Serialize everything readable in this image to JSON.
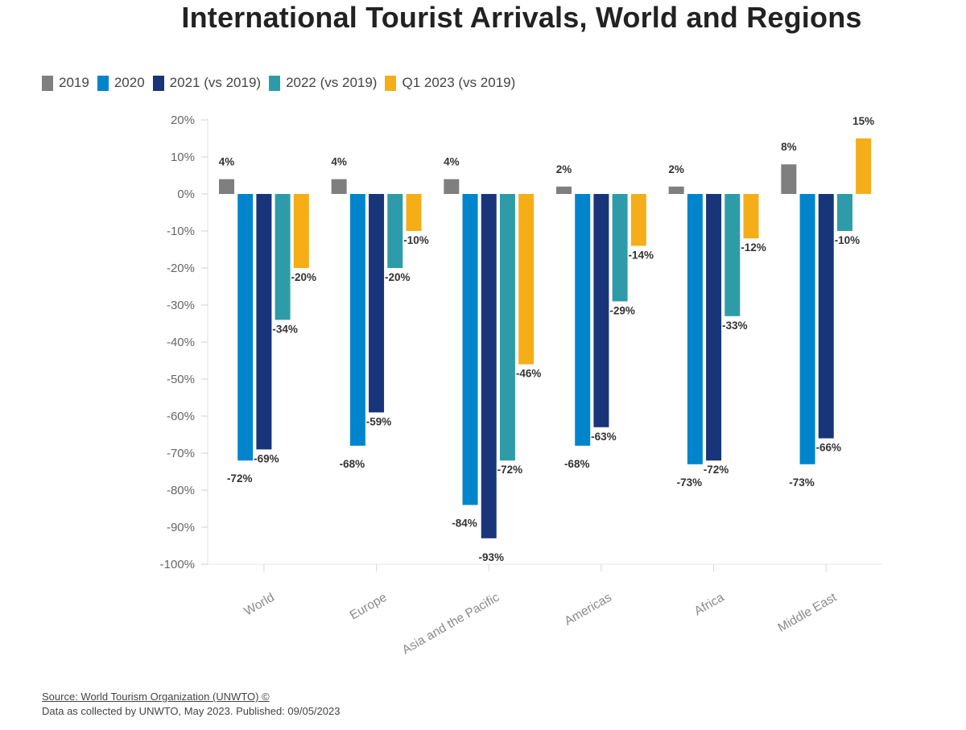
{
  "chart_data": {
    "type": "bar",
    "title": "International Tourist Arrivals, World and Regions",
    "categories": [
      "World",
      "Europe",
      "Asia and the Pacific",
      "Americas",
      "Africa",
      "Middle East"
    ],
    "series": [
      {
        "name": "2019",
        "color": "#7f7f7f",
        "values": [
          4,
          4,
          4,
          2,
          2,
          8
        ]
      },
      {
        "name": "2020",
        "color": "#0085cc",
        "values": [
          -72,
          -68,
          -84,
          -68,
          -73,
          -73
        ]
      },
      {
        "name": "2021 (vs 2019)",
        "color": "#18357a",
        "values": [
          -69,
          -59,
          -93,
          -63,
          -72,
          -66
        ]
      },
      {
        "name": "2022 (vs 2019)",
        "color": "#2e9ca8",
        "values": [
          -34,
          -20,
          -72,
          -29,
          -33,
          -10
        ]
      },
      {
        "name": "Q1 2023 (vs 2019)",
        "color": "#f5ae18",
        "values": [
          -20,
          -10,
          -46,
          -14,
          -12,
          15
        ]
      }
    ],
    "ylim": [
      -100,
      20
    ],
    "yticks": [
      "20%",
      "10%",
      "0%",
      "-10%",
      "-20%",
      "-30%",
      "-40%",
      "-50%",
      "-60%",
      "-70%",
      "-80%",
      "-90%",
      "-100%"
    ],
    "xlabel": "",
    "ylabel": "",
    "legend_position": "top-left",
    "grid": false
  },
  "source": {
    "link_text": "Source: World Tourism Organization (UNWTO) ©",
    "note": "Data as collected by UNWTO, May 2023. Published: 09/05/2023"
  }
}
